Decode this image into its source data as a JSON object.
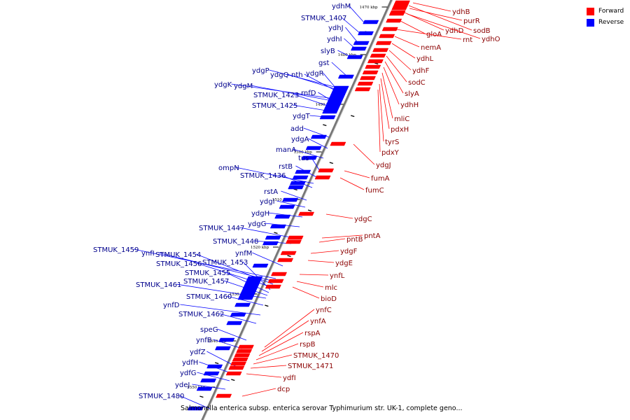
{
  "legend": {
    "forward_label": "Forward",
    "reverse_label": "Reverse",
    "forward_color": "#ff0000",
    "reverse_color": "#0000ff"
  },
  "caption": "Salmonella enterica subsp. enterica serovar Typhimurium str. UK-1, complete geno...",
  "colors": {
    "label_text_reverse": "#00008b",
    "label_text_forward": "#8b0000",
    "axis": "#777777"
  },
  "ticks": [
    "1470 kbp",
    "1480 kbp",
    "1490 kbp",
    "1500 kbp",
    "1510 kbp",
    "1520 kbp",
    "1530 kbp",
    "1540 kbp",
    "1550 kbp"
  ],
  "reverse_genes": [
    "ydhM",
    "STMUK_1407",
    "ydhJ",
    "ydhI",
    "slyB",
    "gst",
    "ydgP",
    "ydgQ",
    "nth",
    "ydgR",
    "ydgK",
    "ydgM",
    "rnfD",
    "STMUK_1423",
    "STMUK_1425",
    "ydgT",
    "add",
    "ydgA",
    "manA",
    "tus",
    "rstB",
    "ompN",
    "STMUK_1436",
    "rstA",
    "ydgI",
    "ydgH",
    "ydgG",
    "STMUK_1447",
    "STMUK_1448",
    "ynfM",
    "STMUK_1459",
    "ynfI",
    "STMUK_1454",
    "STMUK_1456",
    "STMUK_1453",
    "STMUK_1455",
    "STMUK_1457",
    "STMUK_1461",
    "STMUK_1460",
    "ynfD",
    "STMUK_1462",
    "speG",
    "ynfB",
    "ydfZ",
    "ydfH",
    "ydfG",
    "ydeJ",
    "STMUK_1480"
  ],
  "forward_genes": [
    "ydhB",
    "purR",
    "ydhD",
    "sodB",
    "gloA",
    "rnt",
    "ydhO",
    "nemA",
    "ydhL",
    "ydhF",
    "sodC",
    "slyA",
    "ydhH",
    "mliC",
    "pdxH",
    "tyrS",
    "pdxY",
    "ydgJ",
    "fumA",
    "fumC",
    "ydgC",
    "pntA",
    "pntB",
    "ydgF",
    "ydgE",
    "ynfL",
    "mlc",
    "bioD",
    "ynfC",
    "ynfA",
    "rspA",
    "rspB",
    "STMUK_1470",
    "STMUK_1471",
    "ydfI",
    "dcp"
  ]
}
